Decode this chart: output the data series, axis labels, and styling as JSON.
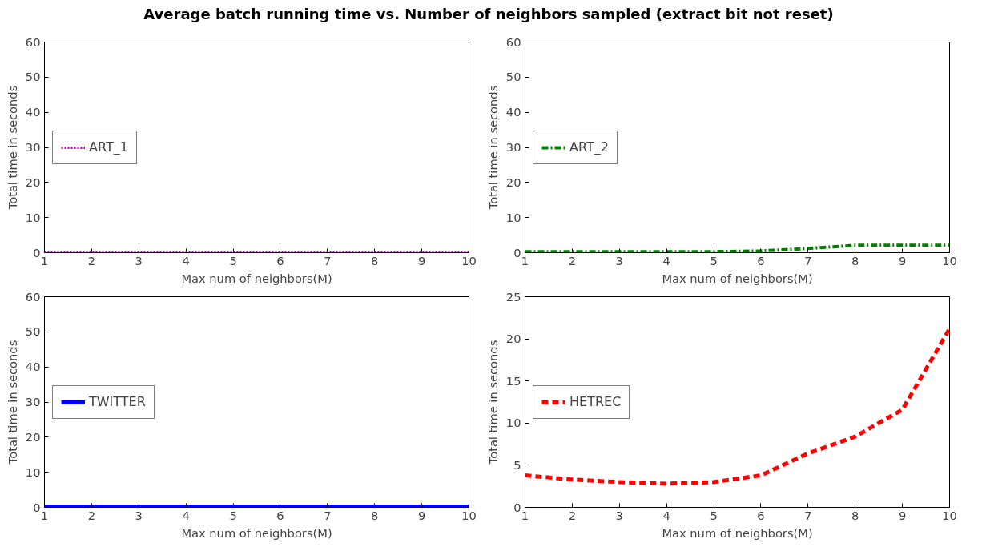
{
  "chart_data": [
    {
      "type": "line",
      "title": "Average batch running time vs. Number of neighbors sampled (extract bit not reset)",
      "xlabel": "Max num of neighbors(M)",
      "ylabel": "Total time in seconds",
      "x": [
        1,
        2,
        3,
        4,
        5,
        6,
        7,
        8,
        9,
        10
      ],
      "series": [
        {
          "name": "ART_1",
          "color": "#bf00bf",
          "line_style": "dotted",
          "values": [
            0.2,
            0.2,
            0.2,
            0.2,
            0.2,
            0.2,
            0.2,
            0.2,
            0.2,
            0.2
          ]
        }
      ],
      "xlim": [
        1,
        10
      ],
      "ylim": [
        0,
        60
      ],
      "xticks": [
        1,
        2,
        3,
        4,
        5,
        6,
        7,
        8,
        9,
        10
      ],
      "yticks": [
        0,
        10,
        20,
        30,
        40,
        50,
        60
      ],
      "grid": false,
      "legend": "left"
    },
    {
      "type": "line",
      "xlabel": "Max num of neighbors(M)",
      "ylabel": "Total time in seconds",
      "x": [
        1,
        2,
        3,
        4,
        5,
        6,
        7,
        8,
        9,
        10
      ],
      "series": [
        {
          "name": "ART_2",
          "color": "#008000",
          "line_style": "dashdot",
          "values": [
            0.3,
            0.3,
            0.3,
            0.3,
            0.3,
            0.5,
            1.2,
            2.1,
            2.1,
            2.1
          ]
        }
      ],
      "xlim": [
        1,
        10
      ],
      "ylim": [
        0,
        60
      ],
      "xticks": [
        1,
        2,
        3,
        4,
        5,
        6,
        7,
        8,
        9,
        10
      ],
      "yticks": [
        0,
        10,
        20,
        30,
        40,
        50,
        60
      ],
      "grid": false,
      "legend": "left"
    },
    {
      "type": "line",
      "xlabel": "Max num of neighbors(M)",
      "ylabel": "Total time in seconds",
      "x": [
        1,
        2,
        3,
        4,
        5,
        6,
        7,
        8,
        9,
        10
      ],
      "series": [
        {
          "name": "TWITTER",
          "color": "#0000ff",
          "line_style": "solid",
          "values": [
            0.2,
            0.2,
            0.2,
            0.2,
            0.2,
            0.2,
            0.2,
            0.2,
            0.2,
            0.2
          ]
        }
      ],
      "xlim": [
        1,
        10
      ],
      "ylim": [
        0,
        60
      ],
      "xticks": [
        1,
        2,
        3,
        4,
        5,
        6,
        7,
        8,
        9,
        10
      ],
      "yticks": [
        0,
        10,
        20,
        30,
        40,
        50,
        60
      ],
      "grid": false,
      "legend": "left"
    },
    {
      "type": "line",
      "xlabel": "Max num of neighbors(M)",
      "ylabel": "Total time in seconds",
      "x": [
        1,
        2,
        3,
        4,
        5,
        6,
        7,
        8,
        9,
        10
      ],
      "series": [
        {
          "name": "HETREC",
          "color": "#ff0000",
          "line_style": "dashed",
          "values": [
            3.8,
            3.3,
            3.0,
            2.8,
            3.0,
            3.8,
            6.4,
            8.4,
            11.6,
            21.2
          ]
        }
      ],
      "xlim": [
        1,
        10
      ],
      "ylim": [
        0,
        25
      ],
      "xticks": [
        1,
        2,
        3,
        4,
        5,
        6,
        7,
        8,
        9,
        10
      ],
      "yticks": [
        0,
        5,
        10,
        15,
        20,
        25
      ],
      "grid": false,
      "legend": "left"
    }
  ]
}
